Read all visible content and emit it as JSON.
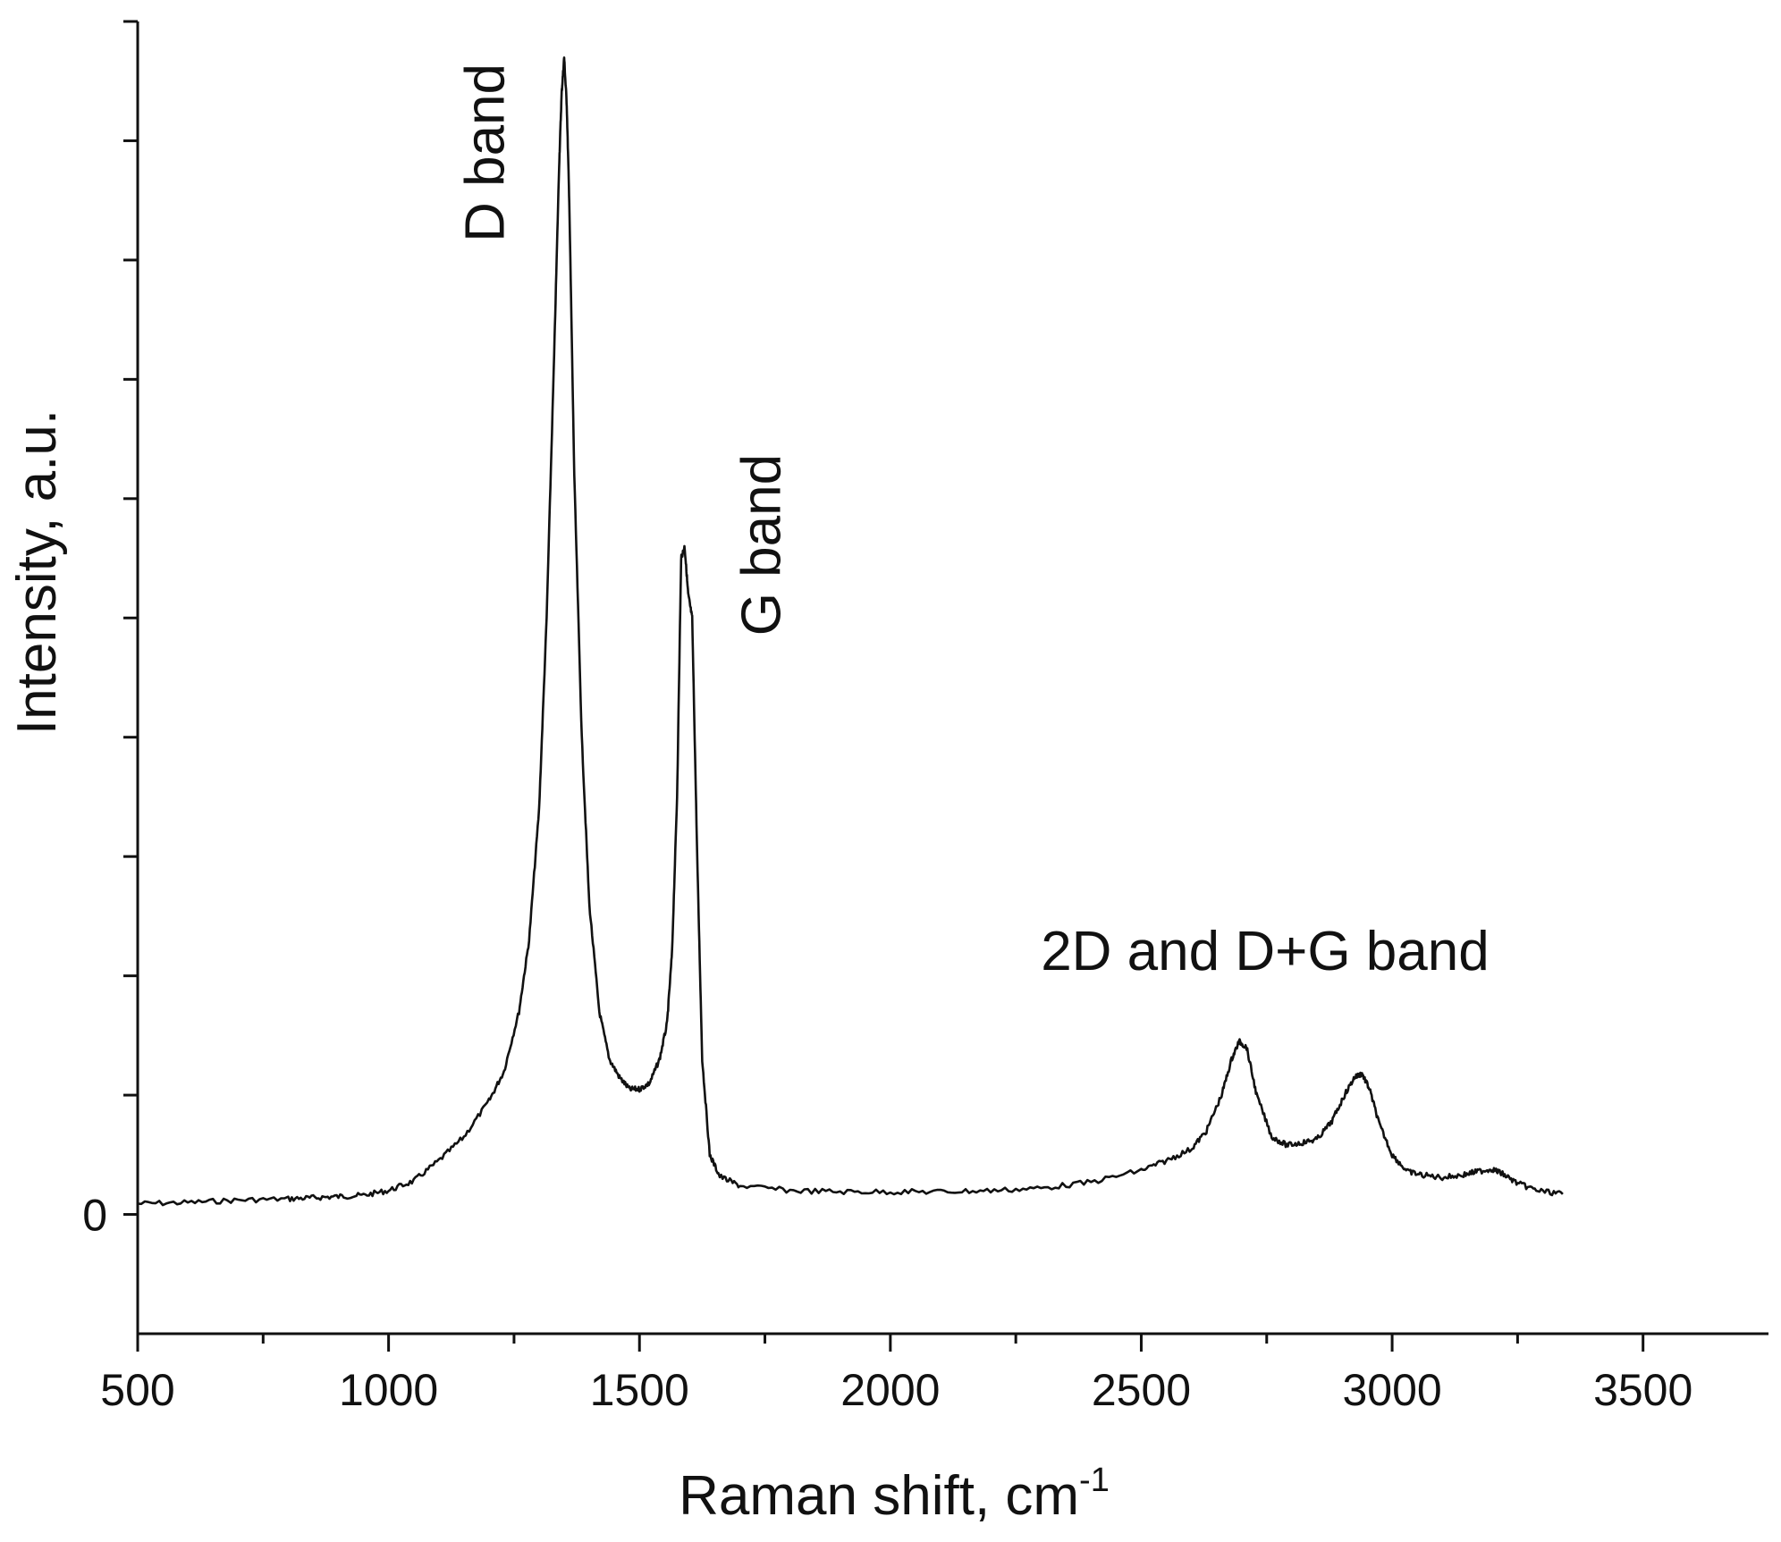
{
  "chart_data": {
    "type": "line",
    "title": "",
    "xlabel": "Raman shift, cm",
    "xlabel_superscript": "-1",
    "ylabel": "Intensity, a.u.",
    "xlim": [
      500,
      3750
    ],
    "ylim": [
      -0.1,
      1.0
    ],
    "x_ticks": [
      500,
      1000,
      1500,
      2000,
      2500,
      3000,
      3500
    ],
    "x_tick_labels": [
      "500",
      "1000",
      "1500",
      "2000",
      "2500",
      "3000",
      "3500"
    ],
    "x_minor_ticks": [
      750,
      1250,
      1750,
      2250,
      2750,
      3250
    ],
    "y_ticks": [
      0,
      0.1,
      0.2,
      0.3,
      0.4,
      0.5,
      0.6,
      0.7,
      0.8,
      0.9,
      1.0
    ],
    "y_tick_labels": [
      {
        "value": 0,
        "label": "0"
      }
    ],
    "grid": false,
    "annotations": [
      {
        "text": "D band",
        "x": 1230,
        "y": 0.815,
        "rotation": -90
      },
      {
        "text": "G band",
        "x": 1780,
        "y": 0.485,
        "rotation": -90
      },
      {
        "text": "2D and D+G band",
        "x": 2300,
        "y": 0.205,
        "rotation": 0
      }
    ],
    "series": [
      {
        "x": [
          500,
          600,
          700,
          800,
          850,
          900,
          950,
          1000,
          1050,
          1100,
          1150,
          1200,
          1230,
          1260,
          1280,
          1300,
          1315,
          1330,
          1340,
          1345,
          1350,
          1355,
          1360,
          1370,
          1385,
          1400,
          1420,
          1440,
          1460,
          1480,
          1500,
          1520,
          1540,
          1555,
          1565,
          1575,
          1583,
          1590,
          1597,
          1605,
          1615,
          1625,
          1640,
          1660,
          1700,
          1800,
          1900,
          2000,
          2100,
          2200,
          2300,
          2400,
          2500,
          2550,
          2600,
          2630,
          2660,
          2680,
          2695,
          2710,
          2730,
          2760,
          2790,
          2820,
          2850,
          2880,
          2905,
          2925,
          2940,
          2955,
          2975,
          3000,
          3030,
          3060,
          3100,
          3140,
          3170,
          3200,
          3220,
          3250,
          3290,
          3340
        ],
        "y": [
          0.009,
          0.01,
          0.012,
          0.013,
          0.014,
          0.015,
          0.016,
          0.02,
          0.028,
          0.045,
          0.065,
          0.095,
          0.12,
          0.17,
          0.23,
          0.34,
          0.5,
          0.72,
          0.88,
          0.94,
          0.97,
          0.93,
          0.85,
          0.62,
          0.4,
          0.26,
          0.17,
          0.13,
          0.115,
          0.105,
          0.105,
          0.11,
          0.13,
          0.16,
          0.22,
          0.35,
          0.55,
          0.56,
          0.52,
          0.5,
          0.3,
          0.13,
          0.05,
          0.032,
          0.024,
          0.02,
          0.019,
          0.019,
          0.019,
          0.02,
          0.022,
          0.027,
          0.037,
          0.045,
          0.055,
          0.07,
          0.1,
          0.13,
          0.145,
          0.14,
          0.1,
          0.065,
          0.058,
          0.06,
          0.063,
          0.078,
          0.1,
          0.115,
          0.118,
          0.105,
          0.075,
          0.05,
          0.036,
          0.033,
          0.031,
          0.033,
          0.036,
          0.038,
          0.034,
          0.026,
          0.02,
          0.017
        ]
      }
    ]
  }
}
